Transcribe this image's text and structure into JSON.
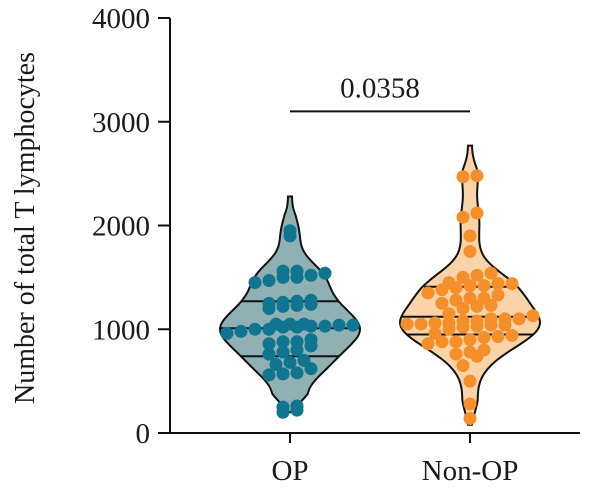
{
  "chart_data": {
    "type": "violin",
    "ylabel": "Number of total T lymphocytes",
    "xlabel": "",
    "ylim": [
      0,
      4000
    ],
    "yticks": [
      0,
      1000,
      2000,
      3000,
      4000
    ],
    "grid": false,
    "categories": [
      "OP",
      "Non-OP"
    ],
    "colors": {
      "OP_fill": "#8fb1b3",
      "OP_point": "#0f7591",
      "NonOP_fill": "#fbd3a8",
      "NonOP_point": "#f58f2a",
      "line": "#111111"
    },
    "series": [
      {
        "name": "OP",
        "range": [
          200,
          2280
        ],
        "quartiles": [
          740,
          1010,
          1270
        ],
        "values": [
          200,
          220,
          250,
          260,
          560,
          570,
          580,
          620,
          660,
          680,
          700,
          760,
          780,
          800,
          840,
          860,
          880,
          880,
          900,
          960,
          980,
          1000,
          1000,
          1020,
          1020,
          1030,
          1030,
          1040,
          1040,
          1050,
          1050,
          1050,
          1200,
          1220,
          1230,
          1240,
          1250,
          1260,
          1270,
          1280,
          1450,
          1470,
          1500,
          1500,
          1520,
          1540,
          1560,
          1560,
          1900,
          1950
        ]
      },
      {
        "name": "Non-OP",
        "range": [
          80,
          2770
        ],
        "quartiles": [
          950,
          1120,
          1410
        ],
        "values": [
          140,
          280,
          500,
          650,
          740,
          760,
          780,
          800,
          860,
          880,
          880,
          900,
          920,
          930,
          940,
          960,
          1000,
          1020,
          1030,
          1040,
          1040,
          1050,
          1050,
          1060,
          1060,
          1080,
          1080,
          1100,
          1100,
          1100,
          1130,
          1150,
          1200,
          1220,
          1230,
          1250,
          1280,
          1300,
          1300,
          1330,
          1350,
          1380,
          1400,
          1420,
          1420,
          1440,
          1440,
          1450,
          1500,
          1520,
          1540,
          1750,
          1900,
          2080,
          2120,
          2470,
          2480
        ]
      }
    ],
    "annotation": {
      "text": "0.0358",
      "between": [
        "OP",
        "Non-OP"
      ],
      "y": 3100
    }
  }
}
